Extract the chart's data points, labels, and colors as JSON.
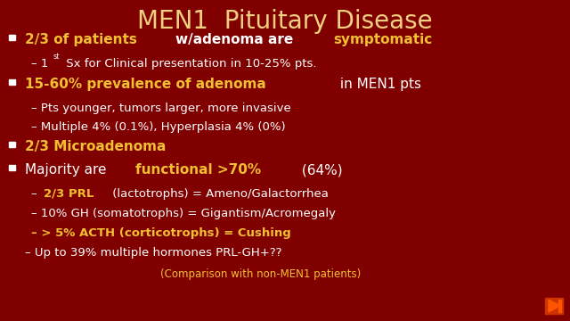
{
  "title": "MEN1  Pituitary Disease",
  "title_color": "#F0D080",
  "bg_color": "#800000",
  "white": "#FFFFFF",
  "yellow": "#F0C030",
  "arrow_color": "#FF5500",
  "arrow_bg": "#CC3300",
  "title_fontsize": 20,
  "bullet_fontsize": 11,
  "sub_fontsize": 9.5,
  "footer_fontsize": 8.5,
  "line_heights": [
    28,
    22,
    28,
    21,
    21,
    26,
    28,
    22,
    22,
    22,
    24,
    20
  ],
  "rows": [
    {
      "type": "bullet",
      "parts": [
        {
          "text": "2/3 of patients ",
          "color": "#F0C030",
          "bold": true
        },
        {
          "text": "w/adenoma are ",
          "color": "#FFFFFF",
          "bold": true
        },
        {
          "text": "symptomatic",
          "color": "#F0C030",
          "bold": true
        }
      ]
    },
    {
      "type": "sub",
      "parts": [
        {
          "text": "– 1",
          "color": "#FFFFFF",
          "bold": false
        },
        {
          "text": "st",
          "color": "#FFFFFF",
          "bold": false,
          "super": true
        },
        {
          "text": " Sx for Clinical presentation in 10-25% pts.",
          "color": "#FFFFFF",
          "bold": false
        }
      ]
    },
    {
      "type": "bullet",
      "parts": [
        {
          "text": "15-60% prevalence of adenoma",
          "color": "#F0C030",
          "bold": true
        },
        {
          "text": " in MEN1 pts",
          "color": "#FFFFFF",
          "bold": false
        }
      ]
    },
    {
      "type": "sub",
      "parts": [
        {
          "text": "– Pts younger, tumors larger, more invasive",
          "color": "#FFFFFF",
          "bold": false
        }
      ]
    },
    {
      "type": "sub",
      "parts": [
        {
          "text": "– Multiple 4% (0.1%), Hyperplasia 4% (0%)",
          "color": "#FFFFFF",
          "bold": false
        }
      ]
    },
    {
      "type": "bullet",
      "parts": [
        {
          "text": "2/3 Microadenoma",
          "color": "#F0C030",
          "bold": true
        }
      ]
    },
    {
      "type": "bullet",
      "parts": [
        {
          "text": "Majority are ",
          "color": "#FFFFFF",
          "bold": false
        },
        {
          "text": "functional >70%",
          "color": "#F0C030",
          "bold": true
        },
        {
          "text": " (64%)",
          "color": "#FFFFFF",
          "bold": false
        }
      ]
    },
    {
      "type": "sub",
      "parts": [
        {
          "text": "– ",
          "color": "#FFFFFF",
          "bold": false
        },
        {
          "text": "2/3 PRL",
          "color": "#F0C030",
          "bold": true
        },
        {
          "text": " (lactotrophs) = Ameno/Galactorrhea",
          "color": "#FFFFFF",
          "bold": false
        }
      ]
    },
    {
      "type": "sub",
      "parts": [
        {
          "text": "– 10% GH (somatotrophs) = Gigantism/Acromegaly",
          "color": "#FFFFFF",
          "bold": false
        }
      ]
    },
    {
      "type": "sub",
      "parts": [
        {
          "text": "– > 5% ACTH (corticotrophs) = Cushing",
          "color": "#F0C030",
          "bold": true
        }
      ]
    },
    {
      "type": "sub2",
      "parts": [
        {
          "text": "– Up to 39% multiple hormones PRL-GH+??",
          "color": "#FFFFFF",
          "bold": false
        }
      ]
    },
    {
      "type": "footer",
      "parts": [
        {
          "text": "(Comparison with non-MEN1 patients)",
          "color": "#F0C030",
          "bold": false
        }
      ]
    }
  ]
}
